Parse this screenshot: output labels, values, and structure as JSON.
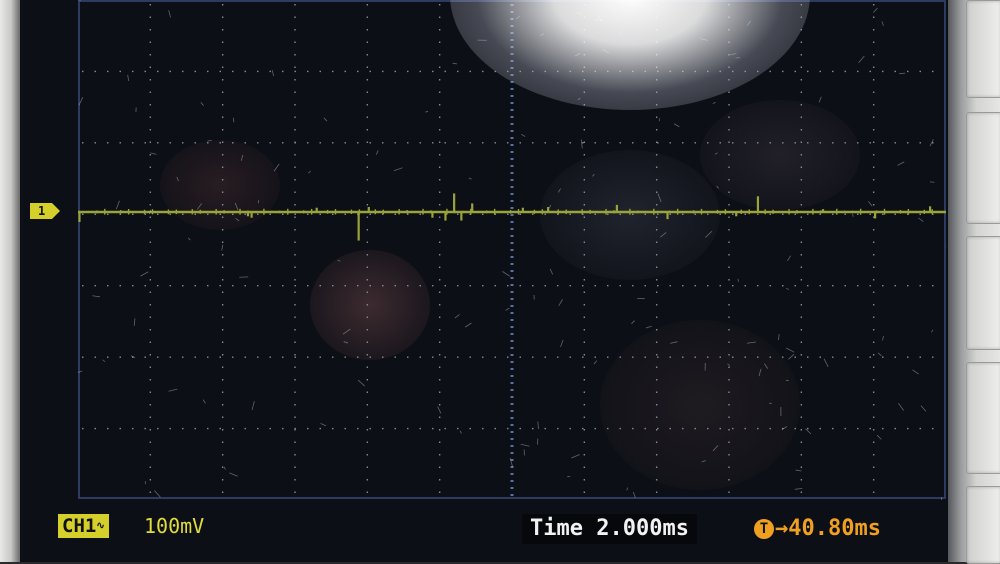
{
  "channel": {
    "marker": "1",
    "badge": "CH1",
    "coupling_symbol": "∿",
    "volts_per_div": "100mV",
    "trace_color": "#9aa438"
  },
  "timebase": {
    "label": "Time",
    "value": "2.000ms"
  },
  "trigger": {
    "icon_glyph": "T",
    "arrow": "→",
    "offset": "40.80ms",
    "color": "#f0a020"
  },
  "chart_data": {
    "type": "line",
    "title": "",
    "xlabel": "",
    "ylabel": "",
    "x_divisions": 12,
    "y_divisions": 7,
    "grid": true,
    "series": [
      {
        "name": "CH1",
        "baseline_div": 0,
        "spikes": [
          {
            "t_div": 0.02,
            "v_div": -0.14
          },
          {
            "t_div": 2.35,
            "v_div": -0.06
          },
          {
            "t_div": 2.4,
            "v_div": -0.08
          },
          {
            "t_div": 3.3,
            "v_div": 0.06
          },
          {
            "t_div": 3.88,
            "v_div": -0.4
          },
          {
            "t_div": 4.02,
            "v_div": 0.07
          },
          {
            "t_div": 4.9,
            "v_div": -0.08
          },
          {
            "t_div": 5.08,
            "v_div": -0.12
          },
          {
            "t_div": 5.2,
            "v_div": 0.26
          },
          {
            "t_div": 5.3,
            "v_div": -0.12
          },
          {
            "t_div": 5.45,
            "v_div": 0.12
          },
          {
            "t_div": 6.15,
            "v_div": 0.06
          },
          {
            "t_div": 6.5,
            "v_div": 0.07
          },
          {
            "t_div": 7.45,
            "v_div": 0.1
          },
          {
            "t_div": 8.15,
            "v_div": -0.1
          },
          {
            "t_div": 9.1,
            "v_div": -0.06
          },
          {
            "t_div": 9.4,
            "v_div": 0.22
          },
          {
            "t_div": 10.3,
            "v_div": 0.04
          },
          {
            "t_div": 11.02,
            "v_div": -0.09
          },
          {
            "t_div": 11.78,
            "v_div": 0.08
          }
        ]
      }
    ]
  }
}
